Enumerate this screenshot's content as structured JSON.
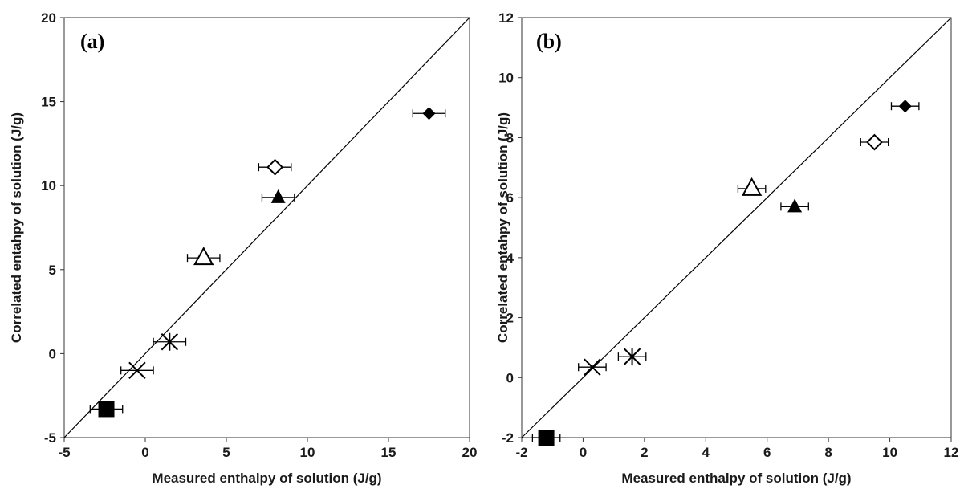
{
  "chart_data": [
    {
      "type": "scatter",
      "title": "(a)",
      "xlabel": "Measured enthalpy of solution (J/g)",
      "ylabel": "Correlated entahpy of solution (J/g)",
      "xlim": [
        -5,
        20
      ],
      "ylim": [
        -5,
        20
      ],
      "xticks": [
        -5,
        0,
        5,
        10,
        15,
        20
      ],
      "yticks": [
        -5,
        0,
        5,
        10,
        15,
        20
      ],
      "grid": false,
      "parity_line": [
        [
          -5,
          -5
        ],
        [
          20,
          20
        ]
      ],
      "points": [
        {
          "marker": "filled-square",
          "x": -2.4,
          "y": -3.3,
          "xerr": 1.0
        },
        {
          "marker": "cross",
          "x": -0.5,
          "y": -1.0,
          "xerr": 1.0
        },
        {
          "marker": "asterisk",
          "x": 1.5,
          "y": 0.7,
          "xerr": 1.0
        },
        {
          "marker": "open-triangle",
          "x": 3.6,
          "y": 5.7,
          "xerr": 1.0
        },
        {
          "marker": "filled-triangle",
          "x": 8.2,
          "y": 9.3,
          "xerr": 1.0
        },
        {
          "marker": "open-diamond",
          "x": 8.0,
          "y": 11.1,
          "xerr": 1.0
        },
        {
          "marker": "filled-diamond",
          "x": 17.5,
          "y": 14.3,
          "xerr": 1.0
        }
      ]
    },
    {
      "type": "scatter",
      "title": "(b)",
      "xlabel": "Measured enthalpy of solution (J/g)",
      "ylabel": "Correlated entahpy of solution (J/g)",
      "xlim": [
        -2,
        12
      ],
      "ylim": [
        -2,
        12
      ],
      "xticks": [
        -2,
        0,
        2,
        4,
        6,
        8,
        10,
        12
      ],
      "yticks": [
        -2,
        0,
        2,
        4,
        6,
        8,
        10,
        12
      ],
      "grid": false,
      "parity_line": [
        [
          -2,
          -2
        ],
        [
          12,
          12
        ]
      ],
      "points": [
        {
          "marker": "filled-square",
          "x": -1.2,
          "y": -2.0,
          "xerr": 0.45
        },
        {
          "marker": "cross",
          "x": 0.3,
          "y": 0.35,
          "xerr": 0.45
        },
        {
          "marker": "asterisk",
          "x": 1.6,
          "y": 0.7,
          "xerr": 0.45
        },
        {
          "marker": "open-triangle",
          "x": 5.5,
          "y": 6.3,
          "xerr": 0.45
        },
        {
          "marker": "filled-triangle",
          "x": 6.9,
          "y": 5.7,
          "xerr": 0.45
        },
        {
          "marker": "open-diamond",
          "x": 9.5,
          "y": 7.85,
          "xerr": 0.45
        },
        {
          "marker": "filled-diamond",
          "x": 10.5,
          "y": 9.05,
          "xerr": 0.45
        }
      ]
    }
  ]
}
